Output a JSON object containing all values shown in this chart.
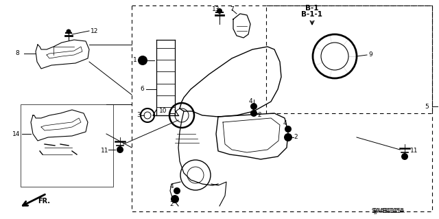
{
  "bg_color": "#ffffff",
  "fig_width": 6.4,
  "fig_height": 3.19,
  "diagram_code": "SJA4B0105A",
  "b_label_line1": "B-1",
  "b_label_line2": "B-1-1"
}
